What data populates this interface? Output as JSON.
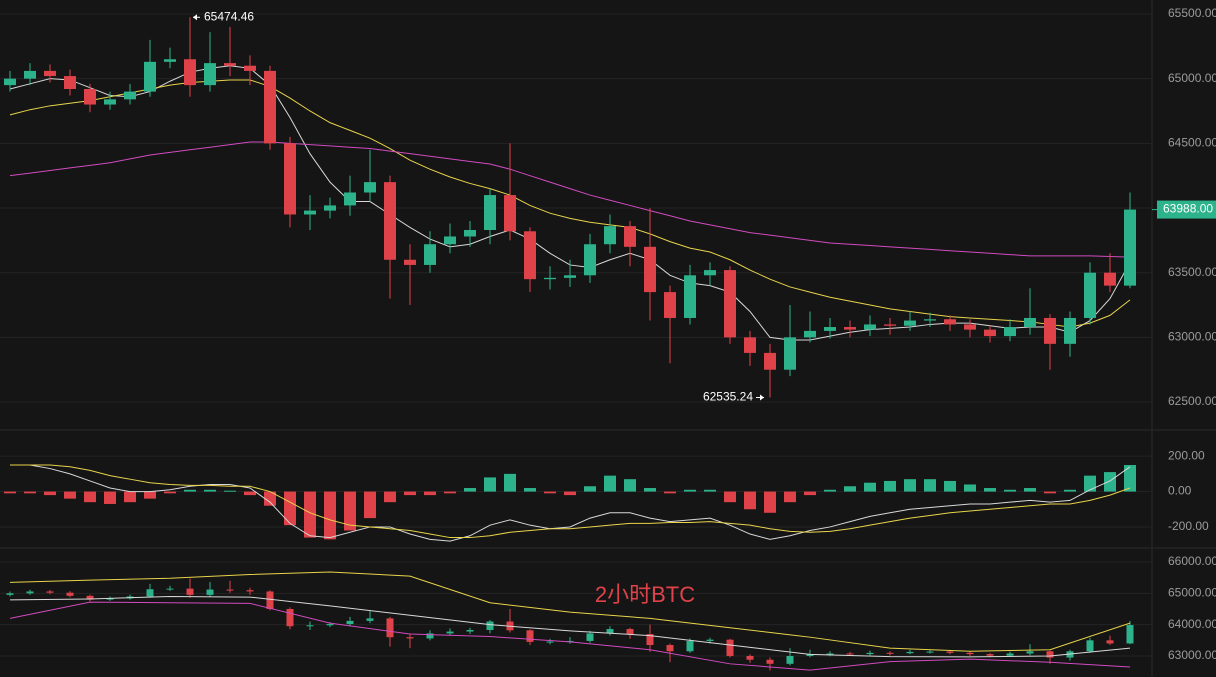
{
  "chart_data": [
    {
      "type": "candlestick",
      "open": [
        64950,
        65000,
        65060,
        65020,
        64920,
        64800,
        64840,
        64900,
        65130,
        65150,
        64950,
        65120,
        65100,
        65060,
        64500,
        63950,
        63980,
        64020,
        64120,
        64200,
        63600,
        63560,
        63720,
        63780,
        63830,
        64100,
        63820,
        63450,
        63460,
        63480,
        63720,
        63860,
        63700,
        63350,
        63150,
        63480,
        63520,
        63000,
        62880,
        62750,
        63000,
        63050,
        63080,
        63060,
        63100,
        63090,
        63130,
        63140,
        63100,
        63060,
        63010,
        63080,
        63150,
        62950,
        63150,
        63500,
        63400
      ],
      "high": [
        65060,
        65120,
        65110,
        65070,
        64960,
        64900,
        64960,
        65300,
        65240,
        65474.46,
        65360,
        65400,
        65180,
        65100,
        64550,
        64100,
        64080,
        64250,
        64450,
        64250,
        63720,
        63820,
        63880,
        63900,
        64150,
        64500,
        63850,
        63550,
        63600,
        63800,
        63950,
        63900,
        64000,
        63400,
        63560,
        63580,
        63550,
        63050,
        62950,
        63250,
        63200,
        63150,
        63130,
        63170,
        63150,
        63200,
        63190,
        63170,
        63140,
        63090,
        63140,
        63380,
        63180,
        63200,
        63580,
        63650,
        64120
      ],
      "low": [
        64900,
        64950,
        64970,
        64870,
        64740,
        64760,
        64800,
        64860,
        65080,
        64860,
        64900,
        65020,
        64950,
        64450,
        63850,
        63830,
        63920,
        63940,
        64050,
        63300,
        63250,
        63500,
        63650,
        63700,
        63720,
        63750,
        63350,
        63370,
        63390,
        63420,
        63650,
        63550,
        63130,
        62800,
        63100,
        63400,
        62950,
        62780,
        62535.24,
        62700,
        62960,
        62990,
        63000,
        63010,
        63020,
        63050,
        63080,
        63050,
        63000,
        62960,
        62970,
        63020,
        62750,
        62850,
        63100,
        63350,
        63380
      ],
      "close": [
        65000,
        65060,
        65020,
        64920,
        64800,
        64840,
        64900,
        65130,
        65150,
        64950,
        65120,
        65100,
        65060,
        64500,
        63950,
        63980,
        64020,
        64120,
        64200,
        63600,
        63560,
        63720,
        63780,
        63830,
        64100,
        63820,
        63450,
        63460,
        63480,
        63720,
        63860,
        63700,
        63350,
        63150,
        63480,
        63520,
        63000,
        62880,
        62750,
        63000,
        63050,
        63080,
        63060,
        63100,
        63090,
        63130,
        63140,
        63100,
        63060,
        63010,
        63080,
        63150,
        62950,
        63150,
        63500,
        63400,
        63988
      ],
      "last_price_label": "63988.00",
      "up_color": "#2db38b",
      "down_color": "#e0424a",
      "series": [
        {
          "color": "#d8d8d8",
          "values": [
            64920,
            64960,
            65000,
            64990,
            64930,
            64870,
            64860,
            64900,
            64980,
            65050,
            65080,
            65100,
            65080,
            64950,
            64700,
            64420,
            64200,
            64050,
            64050,
            63950,
            63850,
            63760,
            63700,
            63720,
            63780,
            63830,
            63760,
            63650,
            63560,
            63540,
            63600,
            63650,
            63600,
            63480,
            63420,
            63400,
            63350,
            63200,
            63000,
            62980,
            62980,
            63010,
            63040,
            63060,
            63070,
            63080,
            63100,
            63110,
            63110,
            63090,
            63070,
            63080,
            63080,
            63040,
            63130,
            63300,
            63580
          ]
        },
        {
          "color": "#e8d44a",
          "values": [
            64720,
            64760,
            64790,
            64810,
            64830,
            64860,
            64890,
            64920,
            64950,
            64970,
            64980,
            64990,
            64990,
            64940,
            64850,
            64750,
            64660,
            64600,
            64540,
            64460,
            64370,
            64300,
            64240,
            64190,
            64150,
            64100,
            64020,
            63960,
            63920,
            63890,
            63870,
            63850,
            63800,
            63740,
            63690,
            63660,
            63600,
            63520,
            63450,
            63390,
            63350,
            63310,
            63280,
            63250,
            63220,
            63200,
            63180,
            63160,
            63150,
            63140,
            63130,
            63120,
            63100,
            63080,
            63110,
            63170,
            63290
          ]
        },
        {
          "color": "#d14bc0",
          "values": [
            64250,
            64270,
            64290,
            64310,
            64330,
            64350,
            64380,
            64410,
            64430,
            64450,
            64470,
            64490,
            64510,
            64510,
            64500,
            64490,
            64480,
            64470,
            64460,
            64440,
            64420,
            64400,
            64380,
            64360,
            64340,
            64300,
            64250,
            64200,
            64150,
            64100,
            64060,
            64020,
            63980,
            63940,
            63900,
            63870,
            63840,
            63810,
            63790,
            63770,
            63750,
            63730,
            63720,
            63710,
            63700,
            63690,
            63680,
            63670,
            63660,
            63650,
            63640,
            63630,
            63630,
            63630,
            63630,
            63625,
            63620
          ]
        }
      ],
      "ylim": [
        62284,
        65608
      ],
      "yticks": [
        {
          "value": 62500,
          "label": "62500.00"
        },
        {
          "value": 63000,
          "label": "63000.00"
        },
        {
          "value": 63500,
          "label": "63500.00"
        },
        {
          "value": 64000,
          "label": "64000.00"
        },
        {
          "value": 64500,
          "label": "64500.00"
        },
        {
          "value": 65000,
          "label": "65000.00"
        },
        {
          "value": 65500,
          "label": "65500.00"
        }
      ],
      "grid": true
    },
    {
      "type": "macd",
      "values": [
        -10,
        -10,
        -20,
        -40,
        -60,
        -70,
        -60,
        -40,
        -10,
        10,
        10,
        5,
        -20,
        -80,
        -190,
        -260,
        -270,
        -220,
        -150,
        -60,
        -20,
        -20,
        -10,
        20,
        80,
        100,
        20,
        -10,
        -20,
        30,
        90,
        70,
        20,
        -10,
        10,
        10,
        -60,
        -100,
        -120,
        -60,
        -20,
        10,
        30,
        50,
        60,
        70,
        70,
        60,
        40,
        20,
        10,
        20,
        -10,
        10,
        90,
        110,
        150
      ],
      "up_color": "#2db38b",
      "down_color": "#e0424a",
      "series": [
        {
          "color": "#d8d8d8",
          "values": [
            150,
            150,
            130,
            100,
            60,
            20,
            0,
            0,
            10,
            30,
            40,
            40,
            20,
            -60,
            -180,
            -250,
            -260,
            -230,
            -200,
            -200,
            -240,
            -270,
            -280,
            -250,
            -190,
            -160,
            -190,
            -210,
            -200,
            -150,
            -120,
            -120,
            -150,
            -170,
            -160,
            -150,
            -190,
            -240,
            -270,
            -250,
            -220,
            -200,
            -170,
            -140,
            -120,
            -100,
            -90,
            -80,
            -70,
            -70,
            -60,
            -50,
            -60,
            -50,
            10,
            60,
            140
          ]
        },
        {
          "color": "#e8d44a",
          "values": [
            150,
            150,
            150,
            140,
            120,
            90,
            70,
            50,
            40,
            35,
            35,
            30,
            30,
            0,
            -60,
            -120,
            -160,
            -190,
            -200,
            -210,
            -220,
            -240,
            -260,
            -260,
            -250,
            -230,
            -220,
            -210,
            -210,
            -200,
            -190,
            -180,
            -180,
            -175,
            -175,
            -170,
            -180,
            -190,
            -210,
            -225,
            -230,
            -225,
            -210,
            -190,
            -170,
            -150,
            -135,
            -120,
            -110,
            -100,
            -90,
            -80,
            -70,
            -70,
            -50,
            -20,
            20
          ]
        }
      ],
      "ylim": [
        -319,
        348
      ],
      "yticks": [
        {
          "value": -200,
          "label": "-200.00"
        },
        {
          "value": 0,
          "label": "0.00"
        },
        {
          "value": 200,
          "label": "200.00"
        }
      ],
      "grid": true
    },
    {
      "type": "bollinger",
      "annotation": "2小时BTC",
      "x": [
        0,
        4,
        8,
        12,
        16,
        20,
        24,
        28,
        32,
        36,
        40,
        44,
        48,
        52,
        56
      ],
      "series": [
        {
          "color": "#e8d44a",
          "values": [
            65350,
            65420,
            65480,
            65600,
            65680,
            65550,
            64700,
            64400,
            64200,
            63900,
            63600,
            63250,
            63150,
            63200,
            64050
          ]
        },
        {
          "color": "#d8d8d8",
          "values": [
            64790,
            64820,
            64900,
            64880,
            64600,
            64300,
            64000,
            63800,
            63650,
            63350,
            63050,
            62980,
            62970,
            63000,
            63250
          ]
        },
        {
          "color": "#d14bc0",
          "values": [
            64200,
            64720,
            64700,
            64680,
            64050,
            63700,
            63620,
            63450,
            63200,
            62750,
            62550,
            62820,
            62900,
            62800,
            62650
          ]
        }
      ],
      "ylim": [
        62329,
        66447
      ],
      "yticks": [
        {
          "value": 63000,
          "label": "63000.00"
        },
        {
          "value": 64000,
          "label": "64000.00"
        },
        {
          "value": 65000,
          "label": "65000.00"
        },
        {
          "value": 66000,
          "label": "66000.00"
        }
      ],
      "grid": true
    }
  ]
}
